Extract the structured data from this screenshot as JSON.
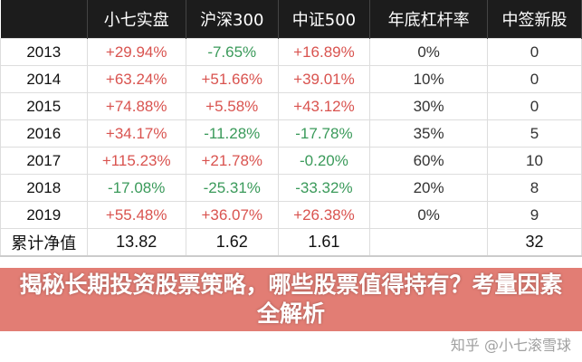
{
  "headers": [
    "",
    "小七实盘",
    "沪深300",
    "中证500",
    "年底杠杆率",
    "中签新股"
  ],
  "rows": [
    [
      "2013",
      "+29.94%",
      "-7.65%",
      "+16.89%",
      "0%",
      "0"
    ],
    [
      "2014",
      "+63.24%",
      "+51.66%",
      "+39.01%",
      "10%",
      "0"
    ],
    [
      "2015",
      "+74.88%",
      "+5.58%",
      "+43.12%",
      "30%",
      "0"
    ],
    [
      "2016",
      "+34.17%",
      "-11.28%",
      "-17.78%",
      "35%",
      "5"
    ],
    [
      "2017",
      "+115.23%",
      "+21.78%",
      "-0.20%",
      "60%",
      "10"
    ],
    [
      "2018",
      "-17.08%",
      "-25.31%",
      "-33.32%",
      "20%",
      "8"
    ],
    [
      "2019",
      "+55.48%",
      "+36.07%",
      "+26.38%",
      "0%",
      "9"
    ]
  ],
  "total": [
    "累计净值",
    "13.82",
    "1.62",
    "1.61",
    "",
    "32"
  ],
  "banner": "揭秘长期投资股票策略，哪些股票值得持有？考量因素全解析",
  "watermark": "知乎 @小七滚雪球",
  "colors": {
    "positive": "#d9534f",
    "negative": "#3a9a5a",
    "header_bg": "#1c1c1c"
  }
}
